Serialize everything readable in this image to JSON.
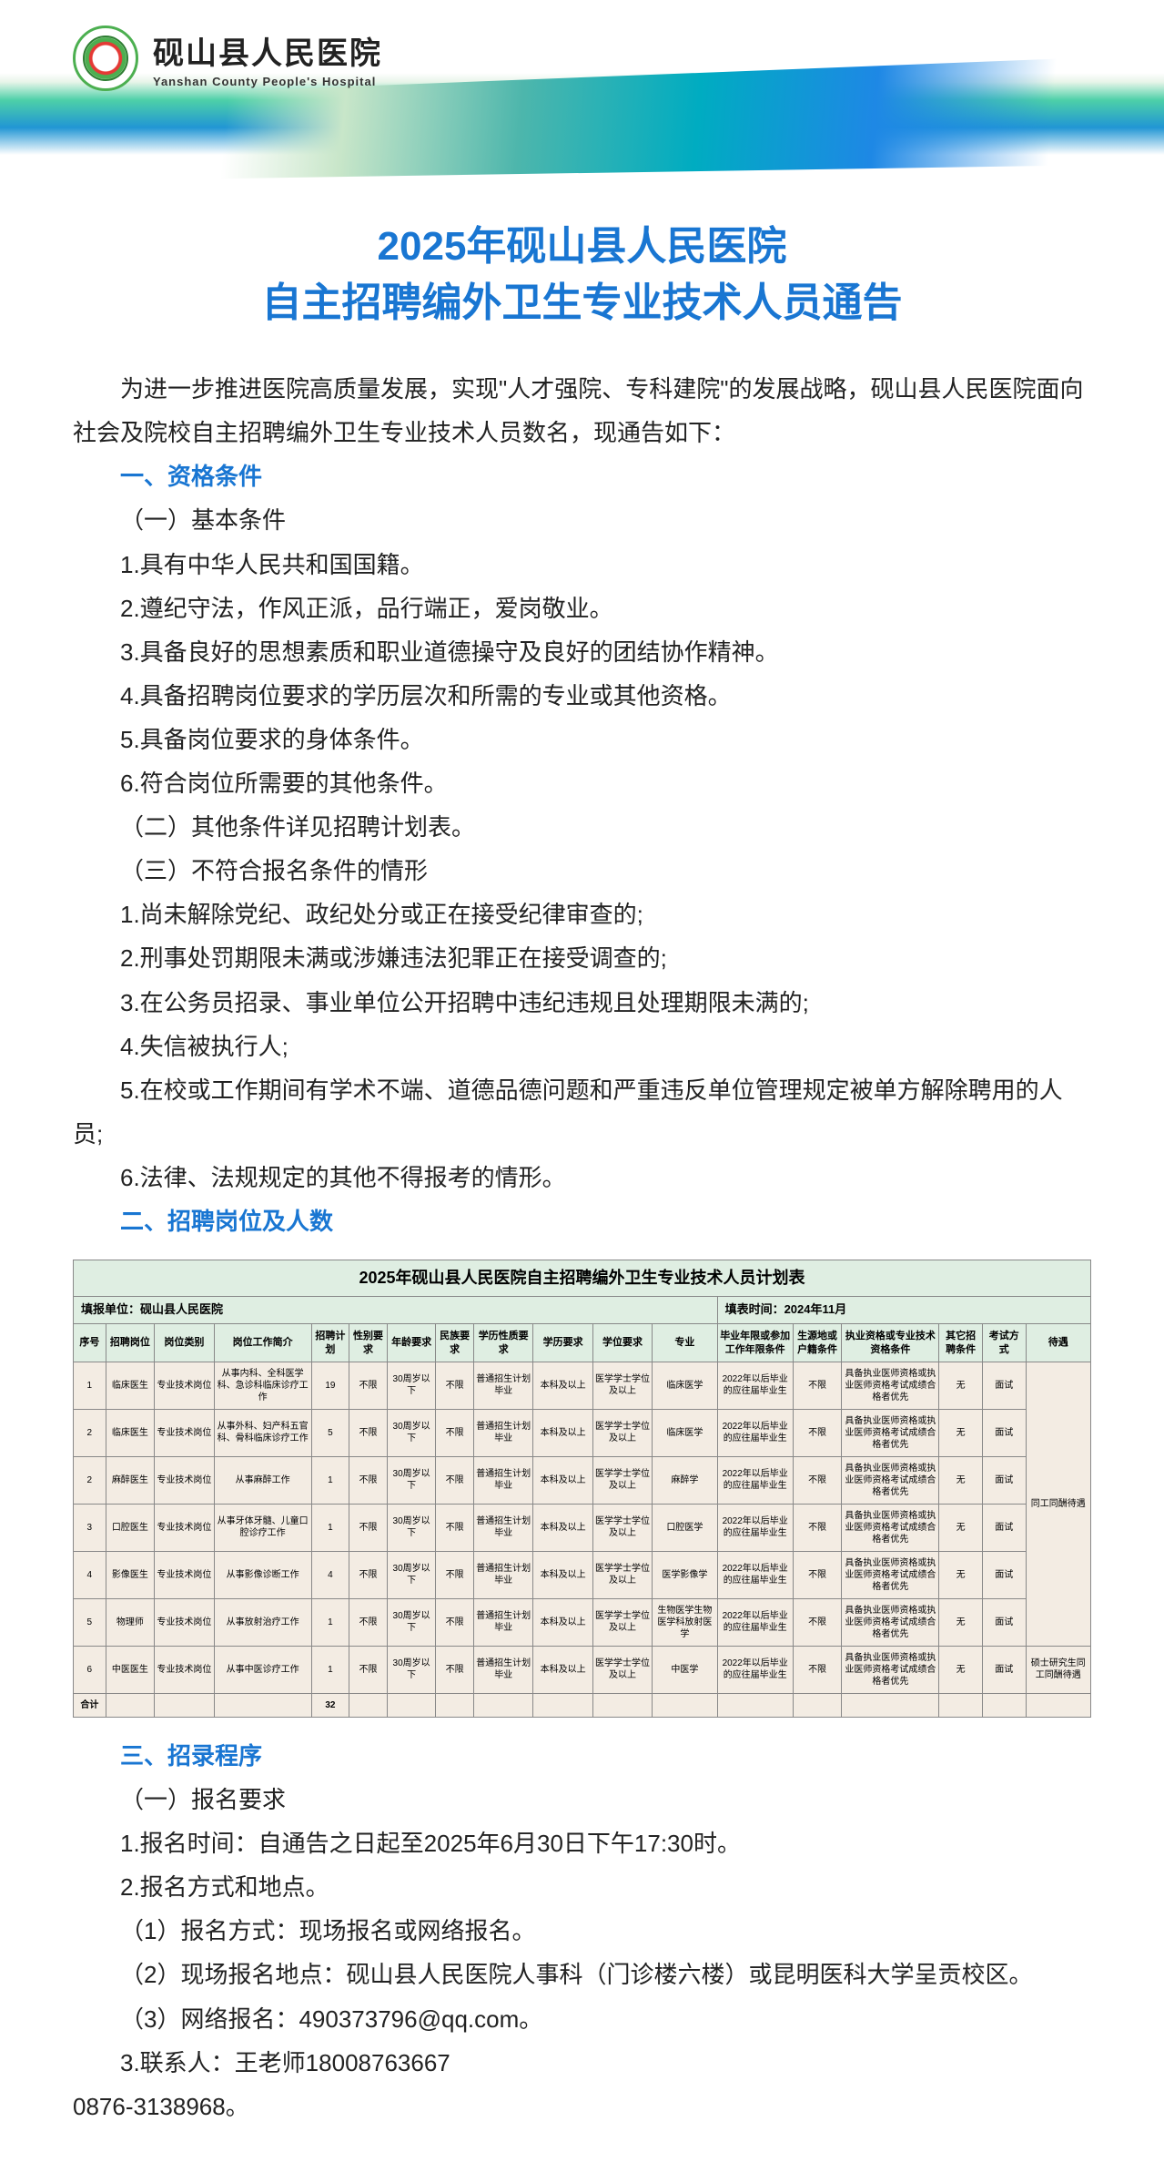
{
  "header": {
    "hospital_cn": "砚山县人民医院",
    "hospital_en": "Yanshan County People's Hospital"
  },
  "title_l1": "2025年砚山县人民医院",
  "title_l2": "自主招聘编外卫生专业技术人员通告",
  "intro": "为进一步推进医院高质量发展，实现\"人才强院、专科建院\"的发展战略，砚山县人民医院面向社会及院校自主招聘编外卫生专业技术人员数名，现通告如下：",
  "sec1_head": "一、资格条件",
  "sec1_1": "（一）基本条件",
  "sec1_items": [
    "1.具有中华人民共和国国籍。",
    "2.遵纪守法，作风正派，品行端正，爱岗敬业。",
    "3.具备良好的思想素质和职业道德操守及良好的团结协作精神。",
    "4.具备招聘岗位要求的学历层次和所需的专业或其他资格。",
    "5.具备岗位要求的身体条件。",
    "6.符合岗位所需要的其他条件。"
  ],
  "sec1_2": "（二）其他条件详见招聘计划表。",
  "sec1_3": "（三）不符合报名条件的情形",
  "sec1_neg": [
    "1.尚未解除党纪、政纪处分或正在接受纪律审查的;",
    "2.刑事处罚期限未满或涉嫌违法犯罪正在接受调查的;",
    "3.在公务员招录、事业单位公开招聘中违纪违规且处理期限未满的;",
    "4.失信被执行人;",
    "5.在校或工作期间有学术不端、道德品德问题和严重违反单位管理规定被单方解除聘用的人员;",
    "6.法律、法规规定的其他不得报考的情形。"
  ],
  "sec2_head": "二、招聘岗位及人数",
  "table": {
    "title": "2025年砚山县人民医院自主招聘编外卫生专业技术人员计划表",
    "filler": "填报单位：砚山县人民医院",
    "fill_time": "填表时间：2024年11月",
    "columns": [
      "序号",
      "招聘岗位",
      "岗位类别",
      "岗位工作简介",
      "招聘计划",
      "性别要求",
      "年龄要求",
      "民族要求",
      "学历性质要求",
      "学历要求",
      "学位要求",
      "专业",
      "毕业年限或参加工作年限条件",
      "生源地或户籍条件",
      "执业资格或专业技术资格条件",
      "其它招聘条件",
      "考试方式",
      "待遇"
    ],
    "rows": [
      [
        "1",
        "临床医生",
        "专业技术岗位",
        "从事内科、全科医学科、急诊科临床诊疗工作",
        "19",
        "不限",
        "30周岁以下",
        "不限",
        "普通招生计划毕业",
        "本科及以上",
        "医学学士学位及以上",
        "临床医学",
        "2022年以后毕业的应往届毕业生",
        "不限",
        "具备执业医师资格或执业医师资格考试成绩合格者优先",
        "无",
        "面试",
        ""
      ],
      [
        "2",
        "临床医生",
        "专业技术岗位",
        "从事外科、妇产科五官科、骨科临床诊疗工作",
        "5",
        "不限",
        "30周岁以下",
        "不限",
        "普通招生计划毕业",
        "本科及以上",
        "医学学士学位及以上",
        "临床医学",
        "2022年以后毕业的应往届毕业生",
        "不限",
        "具备执业医师资格或执业医师资格考试成绩合格者优先",
        "无",
        "面试",
        ""
      ],
      [
        "2",
        "麻醉医生",
        "专业技术岗位",
        "从事麻醉工作",
        "1",
        "不限",
        "30周岁以下",
        "不限",
        "普通招生计划毕业",
        "本科及以上",
        "医学学士学位及以上",
        "麻醉学",
        "2022年以后毕业的应往届毕业生",
        "不限",
        "具备执业医师资格或执业医师资格考试成绩合格者优先",
        "无",
        "面试",
        "同工同酬待遇"
      ],
      [
        "3",
        "口腔医生",
        "专业技术岗位",
        "从事牙体牙髓、儿童口腔诊疗工作",
        "1",
        "不限",
        "30周岁以下",
        "不限",
        "普通招生计划毕业",
        "本科及以上",
        "医学学士学位及以上",
        "口腔医学",
        "2022年以后毕业的应往届毕业生",
        "不限",
        "具备执业医师资格或执业医师资格考试成绩合格者优先",
        "无",
        "面试",
        ""
      ],
      [
        "4",
        "影像医生",
        "专业技术岗位",
        "从事影像诊断工作",
        "4",
        "不限",
        "30周岁以下",
        "不限",
        "普通招生计划毕业",
        "本科及以上",
        "医学学士学位及以上",
        "医学影像学",
        "2022年以后毕业的应往届毕业生",
        "不限",
        "具备执业医师资格或执业医师资格考试成绩合格者优先",
        "无",
        "面试",
        ""
      ],
      [
        "5",
        "物理师",
        "专业技术岗位",
        "从事放射治疗工作",
        "1",
        "不限",
        "30周岁以下",
        "不限",
        "普通招生计划毕业",
        "本科及以上",
        "医学学士学位及以上",
        "生物医学生物医学科放射医学",
        "2022年以后毕业的应往届毕业生",
        "不限",
        "具备执业医师资格或执业医师资格考试成绩合格者优先",
        "无",
        "面试",
        ""
      ],
      [
        "6",
        "中医医生",
        "专业技术岗位",
        "从事中医诊疗工作",
        "1",
        "不限",
        "30周岁以下",
        "不限",
        "普通招生计划毕业",
        "本科及以上",
        "医学学士学位及以上",
        "中医学",
        "2022年以后毕业的应往届毕业生",
        "不限",
        "具备执业医师资格或执业医师资格考试成绩合格者优先",
        "无",
        "面试",
        "硕士研究生同工同酬待遇"
      ]
    ],
    "total_label": "合计",
    "total_value": "32"
  },
  "sec3_head": "三、招录程序",
  "sec3_1": "（一）报名要求",
  "sec3_items": [
    "1.报名时间：自通告之日起至2025年6月30日下午17:30时。",
    "2.报名方式和地点。",
    "（1）报名方式：现场报名或网络报名。",
    "（2）现场报名地点：砚山县人民医院人事科（门诊楼六楼）或昆明医科大学呈贡校区。",
    "（3）网络报名：490373796@qq.com。",
    "3.联系人：王老师18008763667",
    "0876-3138968。"
  ]
}
